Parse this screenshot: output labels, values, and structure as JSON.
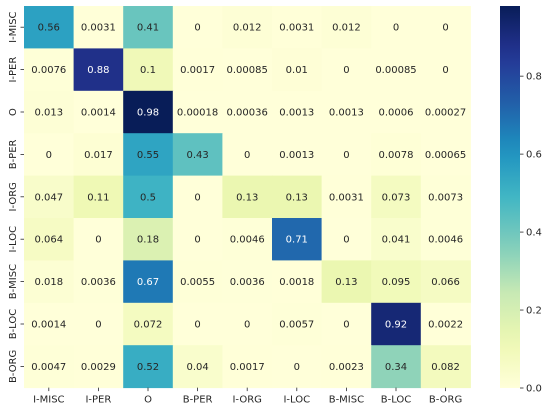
{
  "chart_data": {
    "type": "heatmap",
    "x_labels": [
      "I-MISC",
      "I-PER",
      "O",
      "B-PER",
      "I-ORG",
      "I-LOC",
      "B-MISC",
      "B-LOC",
      "B-ORG"
    ],
    "y_labels": [
      "I-MISC",
      "I-PER",
      "O",
      "B-PER",
      "I-ORG",
      "I-LOC",
      "B-MISC",
      "B-LOC",
      "B-ORG"
    ],
    "values": [
      [
        0.56,
        0.0031,
        0.41,
        0,
        0.012,
        0.0031,
        0.012,
        0,
        0
      ],
      [
        0.0076,
        0.88,
        0.1,
        0.0017,
        0.00085,
        0.01,
        0,
        0.00085,
        0
      ],
      [
        0.013,
        0.0014,
        0.98,
        0.00018,
        0.00036,
        0.0013,
        0.0013,
        0.0006,
        0.00027
      ],
      [
        0,
        0.017,
        0.55,
        0.43,
        0,
        0.0013,
        0,
        0.0078,
        0.00065
      ],
      [
        0.047,
        0.11,
        0.5,
        0,
        0.13,
        0.13,
        0.0031,
        0.073,
        0.0073
      ],
      [
        0.064,
        0,
        0.18,
        0,
        0.0046,
        0.71,
        0,
        0.041,
        0.0046
      ],
      [
        0.018,
        0.0036,
        0.67,
        0.0055,
        0.0036,
        0.0018,
        0.13,
        0.095,
        0.066
      ],
      [
        0.0014,
        0,
        0.072,
        0,
        0,
        0.0057,
        0,
        0.92,
        0.0022
      ],
      [
        0.0047,
        0.0029,
        0.52,
        0.04,
        0.0017,
        0,
        0.0023,
        0.34,
        0.082
      ]
    ],
    "value_labels": [
      [
        "0.56",
        "0.0031",
        "0.41",
        "0",
        "0.012",
        "0.0031",
        "0.012",
        "0",
        "0"
      ],
      [
        "0.0076",
        "0.88",
        "0.1",
        "0.0017",
        "0.00085",
        "0.01",
        "0",
        "0.00085",
        "0"
      ],
      [
        "0.013",
        "0.0014",
        "0.98",
        "0.00018",
        "0.00036",
        "0.0013",
        "0.0013",
        "0.0006",
        "0.00027"
      ],
      [
        "0",
        "0.017",
        "0.55",
        "0.43",
        "0",
        "0.0013",
        "0",
        "0.0078",
        "0.00065"
      ],
      [
        "0.047",
        "0.11",
        "0.5",
        "0",
        "0.13",
        "0.13",
        "0.0031",
        "0.073",
        "0.0073"
      ],
      [
        "0.064",
        "0",
        "0.18",
        "0",
        "0.0046",
        "0.71",
        "0",
        "0.041",
        "0.0046"
      ],
      [
        "0.018",
        "0.0036",
        "0.67",
        "0.0055",
        "0.0036",
        "0.0018",
        "0.13",
        "0.095",
        "0.066"
      ],
      [
        "0.0014",
        "0",
        "0.072",
        "0",
        "0",
        "0.0057",
        "0",
        "0.92",
        "0.0022"
      ],
      [
        "0.0047",
        "0.0029",
        "0.52",
        "0.04",
        "0.0017",
        "0",
        "0.0023",
        "0.34",
        "0.082"
      ]
    ],
    "colormap": "YlGnBu",
    "color_range": [
      0,
      0.98
    ],
    "colorbar_ticks": [
      0.0,
      0.2,
      0.4,
      0.6,
      0.8
    ],
    "colorbar_tick_labels": [
      "0.0",
      "0.2",
      "0.4",
      "0.6",
      "0.8"
    ],
    "title": "",
    "xlabel": "",
    "ylabel": "",
    "grid": false,
    "legend": "colorbar-right"
  }
}
